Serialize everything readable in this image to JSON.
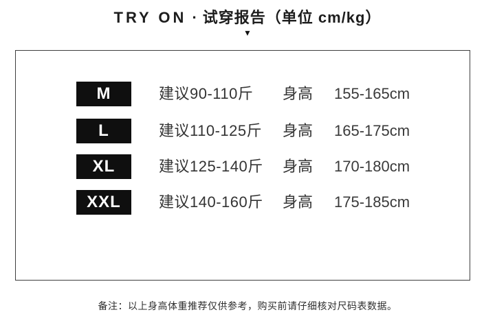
{
  "header": {
    "title_en": "TRY ON",
    "separator": "·",
    "title_zh": "试穿报告（单位 cm/kg）",
    "arrow_icon": "▼"
  },
  "table": {
    "rows": [
      {
        "size": "M",
        "weight": "建议90-110斤",
        "height_label": "身高",
        "height_range": "155-165cm"
      },
      {
        "size": "L",
        "weight": "建议110-125斤",
        "height_label": "身高",
        "height_range": "165-175cm"
      },
      {
        "size": "XL",
        "weight": "建议125-140斤",
        "height_label": "身高",
        "height_range": "170-180cm"
      },
      {
        "size": "XXL",
        "weight": "建议140-160斤",
        "height_label": "身高",
        "height_range": "175-185cm"
      }
    ]
  },
  "footer": {
    "note": "备注：以上身高体重推荐仅供参考，购买前请仔细核对尺码表数据。"
  },
  "colors": {
    "text": "#333333",
    "badge_background": "#0f0f0f",
    "badge_text": "#ffffff",
    "border": "#3d3d3d",
    "background": "#ffffff"
  }
}
